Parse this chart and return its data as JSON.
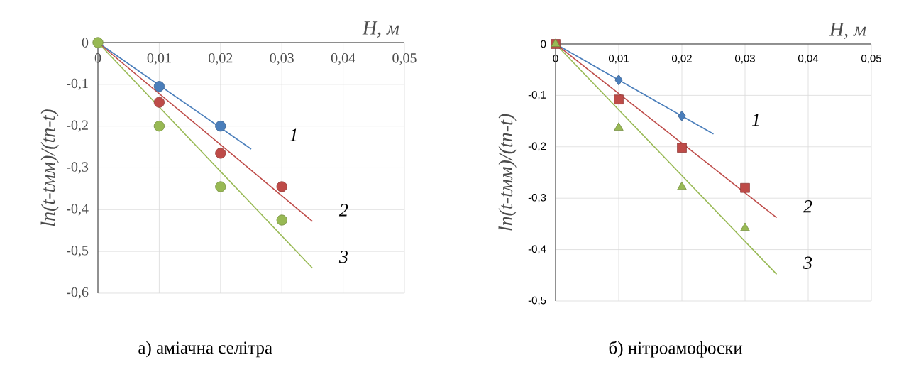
{
  "chart_data": [
    {
      "type": "scatter",
      "title": "а) аміачна селітра",
      "xlabel": "H, м",
      "ylabel": "ln(t-tмм)/(tn-t)",
      "xlim": [
        0,
        0.05
      ],
      "ylim": [
        -0.6,
        0
      ],
      "xticks": [
        0,
        {
          "value": 0.01,
          "label": "0,01"
        },
        {
          "value": 0.02,
          "label": "0,02"
        },
        {
          "value": 0.03,
          "label": "0,03"
        },
        {
          "value": 0.04,
          "label": "0,04"
        },
        {
          "value": 0.05,
          "label": "0,05"
        }
      ],
      "yticks": [
        {
          "value": -0.6,
          "label": "-0,6"
        },
        {
          "value": -0.5,
          "label": "-0,5"
        },
        {
          "value": -0.4,
          "label": "-0,4"
        },
        {
          "value": -0.3,
          "label": "-0,3"
        },
        {
          "value": -0.2,
          "label": "-0,2"
        },
        {
          "value": -0.1,
          "label": "-0,1"
        },
        0
      ],
      "grid": true,
      "series": [
        {
          "marker": "circle",
          "color": "#4a7ebb",
          "x": [
            0.01,
            0.02
          ],
          "values": [
            -0.105,
            -0.2
          ]
        },
        {
          "marker": "circle",
          "color": "#be4b48",
          "x": [
            0.01,
            0.02,
            0.03
          ],
          "values": [
            -0.143,
            -0.265,
            -0.345
          ]
        },
        {
          "marker": "circle",
          "color": "#98b954",
          "x": [
            0,
            0.01,
            0.02,
            0.03
          ],
          "values": [
            0,
            -0.2,
            -0.345,
            -0.425
          ]
        },
        {
          "type": "line",
          "color": "#4a7ebb",
          "x": [
            0,
            0.025
          ],
          "values": [
            0,
            -0.255
          ]
        },
        {
          "type": "line",
          "color": "#be4b48",
          "x": [
            0,
            0.035
          ],
          "values": [
            0,
            -0.428
          ]
        },
        {
          "type": "line",
          "color": "#98b954",
          "x": [
            0,
            0.035
          ],
          "values": [
            0,
            -0.54
          ]
        }
      ],
      "annotations": [
        "1",
        "2",
        "3"
      ]
    },
    {
      "type": "scatter",
      "title": "б) нітроамофоски",
      "xlabel": "H, м",
      "ylabel": "ln(t-tмм)/(tn-t)",
      "xlim": [
        0,
        0.05
      ],
      "ylim": [
        -0.5,
        0
      ],
      "xticks": [
        0,
        {
          "value": 0.01,
          "label": "0,01"
        },
        {
          "value": 0.02,
          "label": "0,02"
        },
        {
          "value": 0.03,
          "label": "0,03"
        },
        {
          "value": 0.04,
          "label": "0,04"
        },
        {
          "value": 0.05,
          "label": "0,05"
        }
      ],
      "yticks": [
        {
          "value": -0.5,
          "label": "-0,5"
        },
        {
          "value": -0.4,
          "label": "-0,4"
        },
        {
          "value": -0.3,
          "label": "-0,3"
        },
        {
          "value": -0.2,
          "label": "-0,2"
        },
        {
          "value": -0.1,
          "label": "-0,1"
        },
        0
      ],
      "grid": true,
      "series": [
        {
          "marker": "diamond",
          "color": "#4a7ebb",
          "x": [
            0.01,
            0.02
          ],
          "values": [
            -0.07,
            -0.14
          ]
        },
        {
          "marker": "square",
          "color": "#be4b48",
          "x": [
            0,
            0.01,
            0.02,
            0.03
          ],
          "values": [
            0,
            -0.108,
            -0.202,
            -0.28
          ]
        },
        {
          "marker": "triangle",
          "color": "#98b954",
          "x": [
            0,
            0.01,
            0.02,
            0.03
          ],
          "values": [
            0,
            -0.163,
            -0.278,
            -0.358
          ]
        },
        {
          "type": "line",
          "color": "#4a7ebb",
          "x": [
            0,
            0.025
          ],
          "values": [
            0,
            -0.175
          ]
        },
        {
          "type": "line",
          "color": "#be4b48",
          "x": [
            0,
            0.035
          ],
          "values": [
            0,
            -0.338
          ]
        },
        {
          "type": "line",
          "color": "#98b954",
          "x": [
            0,
            0.035
          ],
          "values": [
            0,
            -0.448
          ]
        }
      ],
      "annotations": [
        "1",
        "2",
        "3"
      ]
    }
  ]
}
